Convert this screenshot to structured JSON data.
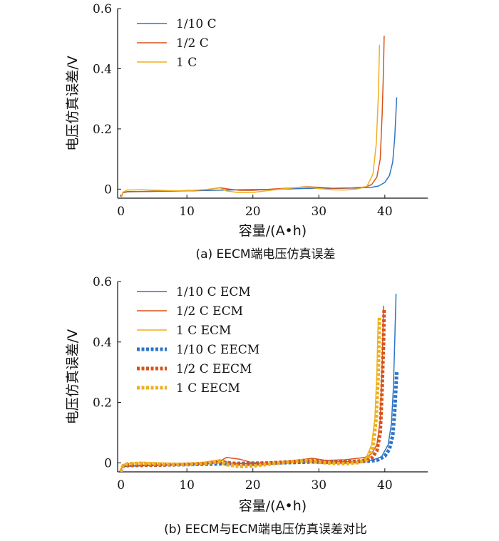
{
  "colors": {
    "c10": "#2e75c6",
    "c2": "#d95319",
    "c1": "#edb120"
  },
  "chart_data": [
    {
      "type": "line",
      "caption": "(a)  EECM端电压仿真误差",
      "xlabel": "容量/(A•h)",
      "ylabel": "电压仿真误差/V",
      "xlim": [
        -0.5,
        46.5
      ],
      "ylim": [
        -0.03,
        0.6
      ],
      "xticks": [
        "0",
        "10",
        "20",
        "30",
        "40"
      ],
      "yticks": [
        "0",
        "0.2",
        "0.4",
        "0.6"
      ],
      "legend": "top-left",
      "series": [
        {
          "name": "1/10 C",
          "color_key": "c10",
          "style": "solid",
          "width": 1.5,
          "points": [
            [
              0,
              -0.03
            ],
            [
              0.3,
              -0.012
            ],
            [
              1,
              -0.009
            ],
            [
              3,
              -0.008
            ],
            [
              6,
              -0.007
            ],
            [
              10,
              -0.006
            ],
            [
              14,
              -0.004
            ],
            [
              16,
              -0.003
            ],
            [
              18,
              -0.002
            ],
            [
              22,
              -0.001
            ],
            [
              26,
              0.001
            ],
            [
              29,
              0.003
            ],
            [
              31,
              0.002
            ],
            [
              34,
              0.003
            ],
            [
              36,
              0.004
            ],
            [
              38,
              0.006
            ],
            [
              39,
              0.01
            ],
            [
              40,
              0.022
            ],
            [
              40.7,
              0.045
            ],
            [
              41.2,
              0.09
            ],
            [
              41.5,
              0.17
            ],
            [
              41.8,
              0.305
            ]
          ]
        },
        {
          "name": "1/2 C",
          "color_key": "c2",
          "style": "solid",
          "width": 1.5,
          "points": [
            [
              0,
              -0.03
            ],
            [
              0.3,
              -0.012
            ],
            [
              1,
              -0.008
            ],
            [
              3,
              -0.008
            ],
            [
              6,
              -0.007
            ],
            [
              10,
              -0.005
            ],
            [
              13,
              -0.002
            ],
            [
              15,
              0.005
            ],
            [
              16,
              0.001
            ],
            [
              18,
              -0.004
            ],
            [
              20,
              -0.004
            ],
            [
              23,
              0.0
            ],
            [
              26,
              0.004
            ],
            [
              28,
              0.008
            ],
            [
              30,
              0.006
            ],
            [
              32,
              0.003
            ],
            [
              35,
              0.004
            ],
            [
              37,
              0.007
            ],
            [
              38,
              0.015
            ],
            [
              38.8,
              0.04
            ],
            [
              39.3,
              0.1
            ],
            [
              39.6,
              0.25
            ],
            [
              39.8,
              0.4
            ],
            [
              39.9,
              0.51
            ]
          ]
        },
        {
          "name": "1 C",
          "color_key": "c1",
          "style": "solid",
          "width": 1.5,
          "points": [
            [
              0,
              -0.03
            ],
            [
              0.3,
              -0.01
            ],
            [
              1,
              -0.003
            ],
            [
              3,
              -0.002
            ],
            [
              6,
              -0.004
            ],
            [
              10,
              -0.006
            ],
            [
              13,
              -0.001
            ],
            [
              15,
              0.004
            ],
            [
              16,
              -0.006
            ],
            [
              18,
              -0.012
            ],
            [
              20,
              -0.011
            ],
            [
              23,
              -0.003
            ],
            [
              26,
              0.004
            ],
            [
              28,
              0.007
            ],
            [
              30,
              0.002
            ],
            [
              32,
              -0.002
            ],
            [
              34,
              -0.003
            ],
            [
              36,
              0.001
            ],
            [
              37.3,
              0.01
            ],
            [
              38.2,
              0.05
            ],
            [
              38.7,
              0.15
            ],
            [
              39.0,
              0.3
            ],
            [
              39.2,
              0.48
            ]
          ]
        }
      ]
    },
    {
      "type": "line",
      "caption": "(b)  EECM与ECM端电压仿真误差对比",
      "xlabel": "容量/(A•h)",
      "ylabel": "电压仿真误差/V",
      "xlim": [
        -0.5,
        46.5
      ],
      "ylim": [
        -0.03,
        0.6
      ],
      "xticks": [
        "0",
        "10",
        "20",
        "30",
        "40"
      ],
      "yticks": [
        "0",
        "0.2",
        "0.4",
        "0.6"
      ],
      "legend": "top-left",
      "series": [
        {
          "name": "1/10 C ECM",
          "color_key": "c10",
          "style": "solid",
          "width": 1.5,
          "points": [
            [
              0,
              -0.02
            ],
            [
              0.5,
              -0.012
            ],
            [
              3,
              -0.01
            ],
            [
              8,
              -0.008
            ],
            [
              12,
              -0.006
            ],
            [
              15,
              0.0
            ],
            [
              17,
              -0.002
            ],
            [
              20,
              -0.003
            ],
            [
              24,
              0.0
            ],
            [
              28,
              0.002
            ],
            [
              32,
              0.003
            ],
            [
              36,
              0.004
            ],
            [
              38,
              0.008
            ],
            [
              39.5,
              0.02
            ],
            [
              40.5,
              0.06
            ],
            [
              41,
              0.13
            ],
            [
              41.3,
              0.25
            ],
            [
              41.5,
              0.4
            ],
            [
              41.7,
              0.56
            ]
          ]
        },
        {
          "name": "1/2 C ECM",
          "color_key": "c2",
          "style": "solid",
          "width": 1.5,
          "points": [
            [
              0,
              -0.02
            ],
            [
              0.5,
              -0.01
            ],
            [
              3,
              -0.008
            ],
            [
              8,
              -0.006
            ],
            [
              12,
              -0.002
            ],
            [
              15,
              0.005
            ],
            [
              16,
              0.018
            ],
            [
              18,
              0.012
            ],
            [
              20,
              0.0
            ],
            [
              22,
              -0.002
            ],
            [
              25,
              0.003
            ],
            [
              29,
              0.015
            ],
            [
              31,
              0.008
            ],
            [
              34,
              0.01
            ],
            [
              37,
              0.018
            ],
            [
              38,
              0.03
            ],
            [
              38.8,
              0.06
            ],
            [
              39.3,
              0.14
            ],
            [
              39.6,
              0.32
            ],
            [
              39.8,
              0.52
            ]
          ]
        },
        {
          "name": "1 C ECM",
          "color_key": "c1",
          "style": "solid",
          "width": 1.5,
          "points": [
            [
              0,
              -0.02
            ],
            [
              0.5,
              -0.004
            ],
            [
              3,
              0.002
            ],
            [
              8,
              -0.002
            ],
            [
              12,
              0.0
            ],
            [
              15,
              0.01
            ],
            [
              16,
              0.004
            ],
            [
              18,
              -0.008
            ],
            [
              20,
              -0.01
            ],
            [
              24,
              -0.002
            ],
            [
              28,
              0.006
            ],
            [
              31,
              0.0
            ],
            [
              34,
              -0.002
            ],
            [
              36,
              0.004
            ],
            [
              37.2,
              0.018
            ],
            [
              38,
              0.06
            ],
            [
              38.5,
              0.15
            ],
            [
              38.8,
              0.3
            ],
            [
              39,
              0.48
            ]
          ]
        },
        {
          "name": "1/10 C EECM",
          "color_key": "c10",
          "style": "dotted",
          "width": 5,
          "points": [
            [
              0,
              -0.03
            ],
            [
              0.3,
              -0.012
            ],
            [
              1,
              -0.009
            ],
            [
              3,
              -0.008
            ],
            [
              6,
              -0.007
            ],
            [
              10,
              -0.006
            ],
            [
              14,
              -0.004
            ],
            [
              16,
              -0.003
            ],
            [
              18,
              -0.002
            ],
            [
              22,
              -0.001
            ],
            [
              26,
              0.001
            ],
            [
              29,
              0.003
            ],
            [
              31,
              0.002
            ],
            [
              34,
              0.003
            ],
            [
              36,
              0.004
            ],
            [
              38,
              0.006
            ],
            [
              39,
              0.01
            ],
            [
              40,
              0.022
            ],
            [
              40.7,
              0.045
            ],
            [
              41.2,
              0.09
            ],
            [
              41.5,
              0.17
            ],
            [
              41.8,
              0.3
            ]
          ]
        },
        {
          "name": "1/2 C EECM",
          "color_key": "c2",
          "style": "dotted",
          "width": 5,
          "points": [
            [
              0,
              -0.03
            ],
            [
              0.3,
              -0.012
            ],
            [
              1,
              -0.008
            ],
            [
              3,
              -0.008
            ],
            [
              6,
              -0.007
            ],
            [
              10,
              -0.005
            ],
            [
              13,
              -0.002
            ],
            [
              15,
              0.005
            ],
            [
              16,
              0.001
            ],
            [
              18,
              -0.004
            ],
            [
              20,
              -0.004
            ],
            [
              23,
              0.0
            ],
            [
              26,
              0.004
            ],
            [
              28,
              0.008
            ],
            [
              30,
              0.006
            ],
            [
              32,
              0.003
            ],
            [
              35,
              0.004
            ],
            [
              37,
              0.007
            ],
            [
              38,
              0.015
            ],
            [
              38.8,
              0.04
            ],
            [
              39.3,
              0.1
            ],
            [
              39.6,
              0.25
            ],
            [
              39.8,
              0.4
            ],
            [
              39.9,
              0.51
            ]
          ]
        },
        {
          "name": "1 C EECM",
          "color_key": "c1",
          "style": "dotted",
          "width": 5,
          "points": [
            [
              0,
              -0.03
            ],
            [
              0.3,
              -0.01
            ],
            [
              1,
              -0.003
            ],
            [
              3,
              -0.002
            ],
            [
              6,
              -0.004
            ],
            [
              10,
              -0.006
            ],
            [
              13,
              -0.001
            ],
            [
              15,
              0.004
            ],
            [
              16,
              -0.006
            ],
            [
              18,
              -0.012
            ],
            [
              20,
              -0.011
            ],
            [
              23,
              -0.003
            ],
            [
              26,
              0.004
            ],
            [
              28,
              0.007
            ],
            [
              30,
              0.002
            ],
            [
              32,
              -0.002
            ],
            [
              34,
              -0.003
            ],
            [
              36,
              0.001
            ],
            [
              37.3,
              0.01
            ],
            [
              38.2,
              0.05
            ],
            [
              38.7,
              0.15
            ],
            [
              39.0,
              0.3
            ],
            [
              39.2,
              0.48
            ]
          ]
        }
      ]
    }
  ]
}
